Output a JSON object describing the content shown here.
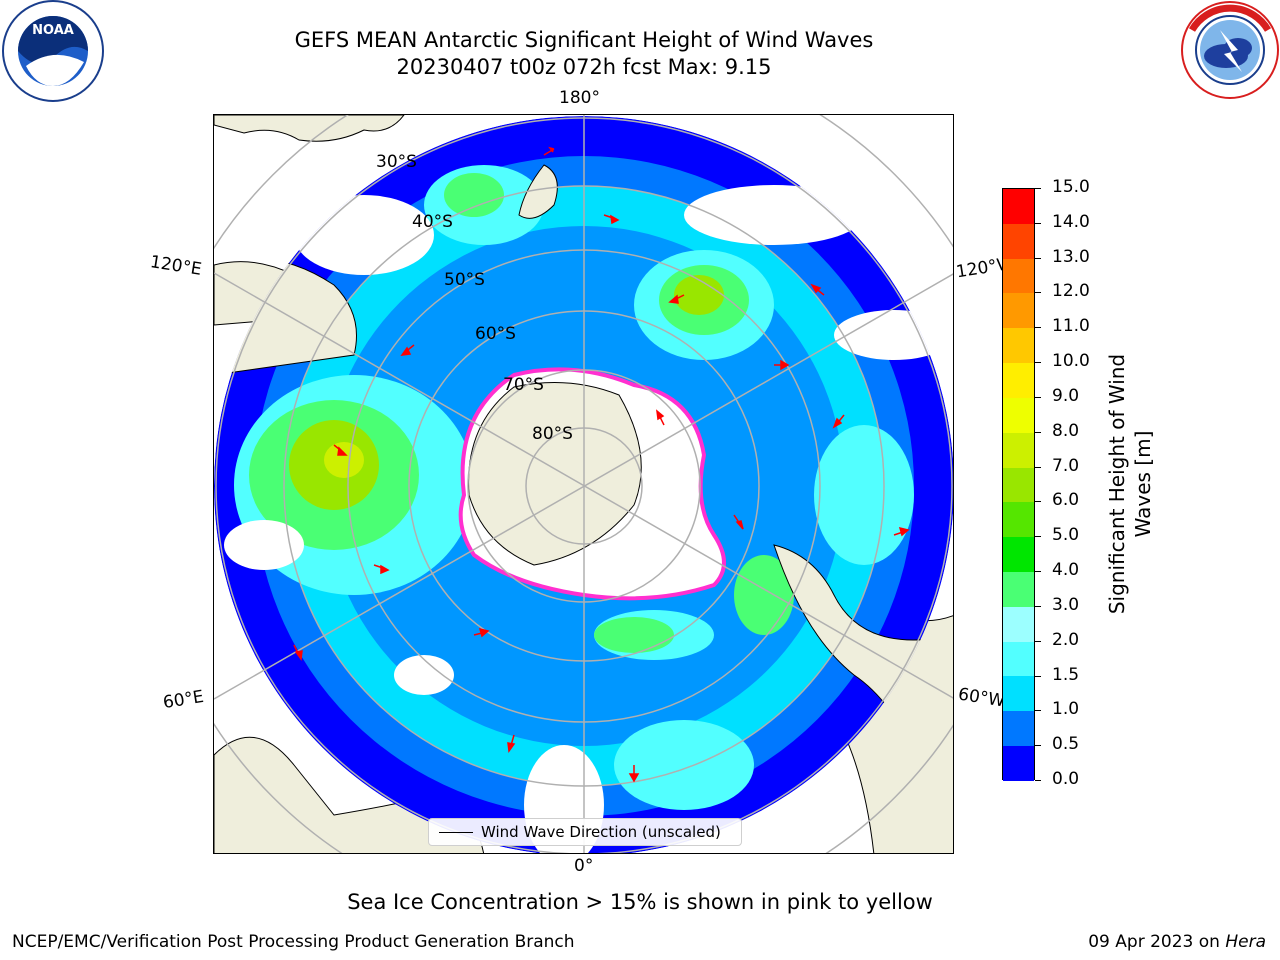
{
  "title": {
    "line1": "GEFS MEAN Antarctic Significant Height of Wind Waves",
    "line2": "20230407 t00z 072h fcst   Max: 9.15"
  },
  "logos": {
    "noaa_text": "NOAA",
    "noaa_ring": "NATIONAL OCEANIC AND ATMOSPHERIC ADMINISTRATION",
    "nws_ring": "NATIONAL WEATHER SERVICE"
  },
  "map": {
    "meridian_labels": {
      "top": "180°",
      "bottom": "0°",
      "upper_left": "120°E",
      "upper_right": "120°W",
      "lower_left": "60°E",
      "lower_right": "60°W"
    },
    "latitude_labels": [
      "30°S",
      "40°S",
      "50°S",
      "60°S",
      "70°S",
      "80°S"
    ],
    "legend_label": "Wind Wave Direction (unscaled)"
  },
  "colorbar": {
    "label_line1": "Significant Height of Wind",
    "label_line2": "Waves [m]",
    "ticks": [
      "0.0",
      "0.5",
      "1.0",
      "1.5",
      "2.0",
      "3.0",
      "4.0",
      "5.0",
      "6.0",
      "7.0",
      "8.0",
      "9.0",
      "10.0",
      "11.0",
      "12.0",
      "13.0",
      "14.0",
      "15.0"
    ],
    "colors": [
      "#0000ff",
      "#0078ff",
      "#00e0ff",
      "#52ffff",
      "#9cffff",
      "#4aff74",
      "#00e600",
      "#55e600",
      "#99e600",
      "#ccf000",
      "#eeff00",
      "#ffee00",
      "#ffc800",
      "#ff9900",
      "#ff7700",
      "#ff4400",
      "#ff0000"
    ]
  },
  "caption": "Sea Ice Concentration > 15% is shown in pink to yellow",
  "footer": {
    "left": "NCEP/EMC/Verification Post Processing Product Generation Branch",
    "right_date": "09 Apr 2023 on ",
    "right_host": "Hera"
  }
}
